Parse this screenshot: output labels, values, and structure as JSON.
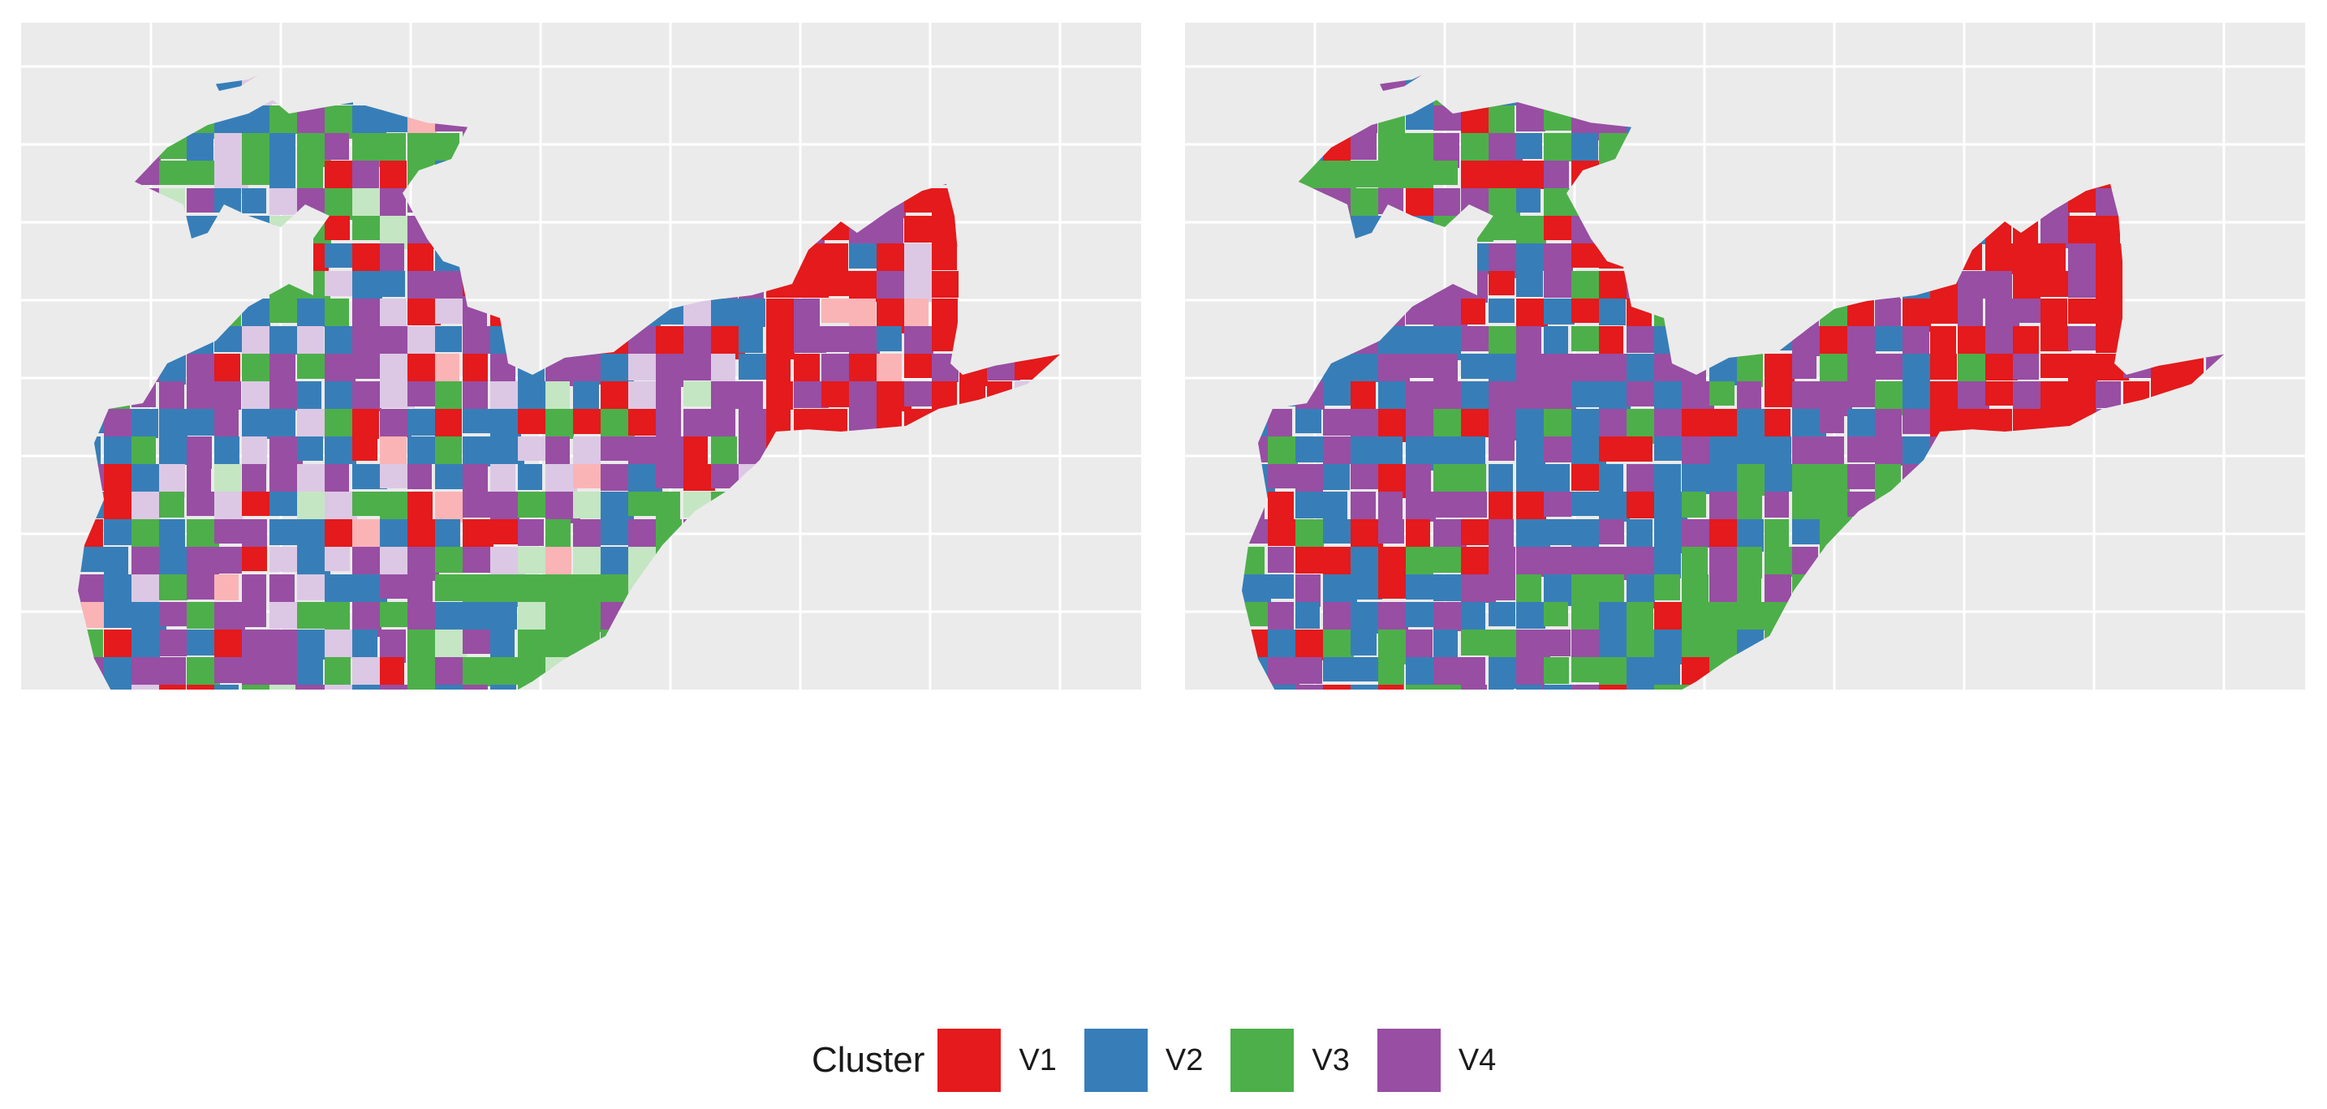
{
  "legend": {
    "title": "Cluster",
    "items": [
      {
        "label": "V1",
        "color": "#e41a1c"
      },
      {
        "label": "V2",
        "color": "#377eb8"
      },
      {
        "label": "V3",
        "color": "#4daf4a"
      },
      {
        "label": "V4",
        "color": "#984ea3"
      }
    ]
  },
  "panels": [
    {
      "name": "left-map",
      "has_light_tints": true
    },
    {
      "name": "right-map",
      "has_light_tints": false
    }
  ],
  "colors": {
    "panel_background": "#ebebeb",
    "grid_lines": "#ffffff",
    "light_red": "#fbb4b6",
    "light_purple": "#dcc8e4",
    "light_green": "#c4e6c2"
  }
}
